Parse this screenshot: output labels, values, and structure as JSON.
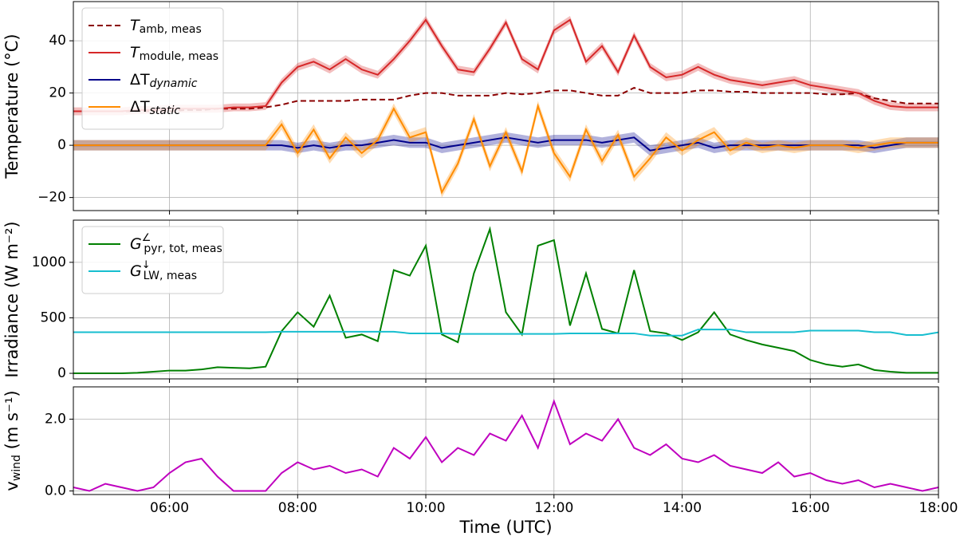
{
  "chart_data": [
    {
      "type": "line",
      "ylabel": "Temperature (°C)",
      "x": [
        "04:30",
        "04:45",
        "05:00",
        "05:15",
        "05:30",
        "05:45",
        "06:00",
        "06:15",
        "06:30",
        "06:45",
        "07:00",
        "07:15",
        "07:30",
        "07:45",
        "08:00",
        "08:15",
        "08:30",
        "08:45",
        "09:00",
        "09:15",
        "09:30",
        "09:45",
        "10:00",
        "10:15",
        "10:30",
        "10:45",
        "11:00",
        "11:15",
        "11:30",
        "11:45",
        "12:00",
        "12:15",
        "12:30",
        "12:45",
        "13:00",
        "13:15",
        "13:30",
        "13:45",
        "14:00",
        "14:15",
        "14:30",
        "14:45",
        "15:00",
        "15:15",
        "15:30",
        "15:45",
        "16:00",
        "16:15",
        "16:30",
        "16:45",
        "17:00",
        "17:15",
        "17:30",
        "17:45",
        "18:00"
      ],
      "xlim": [
        "04:30",
        "18:00"
      ],
      "xticks": [
        "06:00",
        "08:00",
        "10:00",
        "12:00",
        "14:00",
        "16:00",
        "18:00"
      ],
      "ylim": [
        -25,
        55
      ],
      "yticks": [
        {
          "value": -20,
          "label": "−20"
        },
        0,
        20,
        40
      ],
      "grid": true,
      "legend": "upper left",
      "series": [
        {
          "name": "T",
          "name_sub": "amb, meas",
          "color": "#8b0000",
          "dashed": true,
          "values": [
            13,
            13,
            13,
            13,
            13,
            13,
            13,
            13.5,
            13.5,
            14,
            14,
            14,
            14.5,
            15.5,
            17,
            17,
            17,
            17,
            17.5,
            17.5,
            17.5,
            19,
            20,
            20,
            19,
            19,
            19,
            20,
            19.5,
            20,
            21,
            21,
            20,
            19,
            19,
            22,
            20,
            20,
            20,
            21,
            21,
            20.5,
            20.5,
            20,
            20,
            20,
            20,
            19.5,
            19.5,
            20,
            18,
            17,
            16,
            16,
            16
          ]
        },
        {
          "name": "T",
          "name_sub": "module, meas",
          "color": "#d62728",
          "uncertainty": 1.5,
          "values": [
            13,
            13,
            13,
            13,
            13.5,
            13.5,
            14,
            14,
            14,
            14,
            14.5,
            14.5,
            15,
            24,
            30,
            32,
            29,
            33,
            29,
            27,
            33,
            40,
            48,
            38,
            29,
            28,
            37,
            47,
            33,
            29,
            44,
            48,
            32,
            38,
            28,
            42,
            30,
            26,
            27,
            30,
            27,
            25,
            24,
            23,
            24,
            25,
            23,
            22,
            21,
            20,
            17,
            15,
            14.5,
            14.5,
            14.5
          ]
        },
        {
          "name": "ΔT",
          "name_sub": "dynamic",
          "sub_italic": true,
          "color": "#00008b",
          "uncertainty": 2,
          "values": [
            0,
            0,
            0,
            0,
            0,
            0,
            0,
            0,
            0,
            0,
            0,
            0,
            0,
            0,
            -1,
            0,
            -1,
            0,
            0,
            1,
            2,
            1,
            1,
            -1,
            0,
            1,
            2,
            3,
            2,
            1,
            2,
            2,
            2,
            1,
            2,
            3,
            -2,
            -1,
            0,
            1,
            -1,
            0,
            0,
            0,
            0,
            0,
            0,
            0,
            0,
            0,
            -1,
            0,
            1,
            1,
            1
          ]
        },
        {
          "name": "ΔT",
          "name_sub": "static",
          "sub_italic": true,
          "color": "#ff8c00",
          "uncertainty": 2,
          "values": [
            0,
            0,
            0,
            0,
            0,
            0,
            0,
            0,
            0,
            0,
            0,
            0,
            0,
            8,
            -3,
            6,
            -5,
            3,
            -3,
            2,
            14,
            3,
            5,
            -18,
            -7,
            10,
            -8,
            5,
            -10,
            15,
            -3,
            -12,
            6,
            -6,
            4,
            -12,
            -5,
            3,
            -2,
            2,
            5,
            -2,
            1,
            -1,
            0,
            -1,
            0,
            0,
            0,
            -1,
            0,
            1,
            1,
            1,
            1
          ]
        }
      ]
    },
    {
      "type": "line",
      "ylabel": "Irradiance (W m⁻²)",
      "x": [
        "04:30",
        "04:45",
        "05:00",
        "05:15",
        "05:30",
        "05:45",
        "06:00",
        "06:15",
        "06:30",
        "06:45",
        "07:00",
        "07:15",
        "07:30",
        "07:45",
        "08:00",
        "08:15",
        "08:30",
        "08:45",
        "09:00",
        "09:15",
        "09:30",
        "09:45",
        "10:00",
        "10:15",
        "10:30",
        "10:45",
        "11:00",
        "11:15",
        "11:30",
        "11:45",
        "12:00",
        "12:15",
        "12:30",
        "12:45",
        "13:00",
        "13:15",
        "13:30",
        "13:45",
        "14:00",
        "14:15",
        "14:30",
        "14:45",
        "15:00",
        "15:15",
        "15:30",
        "15:45",
        "16:00",
        "16:15",
        "16:30",
        "16:45",
        "17:00",
        "17:15",
        "17:30",
        "17:45",
        "18:00"
      ],
      "xlim": [
        "04:30",
        "18:00"
      ],
      "xticks": [
        "06:00",
        "08:00",
        "10:00",
        "12:00",
        "14:00",
        "16:00",
        "18:00"
      ],
      "ylim": [
        -50,
        1380
      ],
      "yticks": [
        0,
        500,
        1000
      ],
      "grid": true,
      "legend": "upper left",
      "series": [
        {
          "name": "G",
          "name_sup": "∠",
          "name_sub": "pyr, tot, meas",
          "color": "#008000",
          "values": [
            0,
            0,
            0,
            0,
            5,
            15,
            25,
            25,
            35,
            55,
            50,
            45,
            60,
            380,
            550,
            420,
            700,
            320,
            350,
            290,
            930,
            880,
            1150,
            350,
            280,
            900,
            1300,
            550,
            350,
            1150,
            1200,
            430,
            900,
            400,
            360,
            930,
            380,
            360,
            300,
            370,
            550,
            350,
            300,
            260,
            230,
            200,
            120,
            80,
            60,
            80,
            30,
            15,
            5,
            5,
            5
          ]
        },
        {
          "name": "G",
          "name_sup": "↓",
          "name_sub": "LW, meas",
          "color": "#17becf",
          "values": [
            370,
            370,
            370,
            370,
            370,
            370,
            370,
            370,
            370,
            370,
            370,
            370,
            370,
            375,
            375,
            375,
            375,
            375,
            375,
            375,
            375,
            360,
            360,
            360,
            355,
            355,
            355,
            355,
            355,
            355,
            355,
            360,
            360,
            360,
            360,
            360,
            340,
            340,
            340,
            395,
            395,
            395,
            370,
            370,
            370,
            370,
            385,
            385,
            385,
            385,
            370,
            370,
            345,
            345,
            370
          ]
        }
      ]
    },
    {
      "type": "line",
      "ylabel": "v",
      "ylabel_sub": "wind",
      "ylabel_rest": " (m s⁻¹)",
      "xlabel": "Time (UTC)",
      "x": [
        "04:30",
        "04:45",
        "05:00",
        "05:15",
        "05:30",
        "05:45",
        "06:00",
        "06:15",
        "06:30",
        "06:45",
        "07:00",
        "07:15",
        "07:30",
        "07:45",
        "08:00",
        "08:15",
        "08:30",
        "08:45",
        "09:00",
        "09:15",
        "09:30",
        "09:45",
        "10:00",
        "10:15",
        "10:30",
        "10:45",
        "11:00",
        "11:15",
        "11:30",
        "11:45",
        "12:00",
        "12:15",
        "12:30",
        "12:45",
        "13:00",
        "13:15",
        "13:30",
        "13:45",
        "14:00",
        "14:15",
        "14:30",
        "14:45",
        "15:00",
        "15:15",
        "15:30",
        "15:45",
        "16:00",
        "16:15",
        "16:30",
        "16:45",
        "17:00",
        "17:15",
        "17:30",
        "17:45",
        "18:00"
      ],
      "xlim": [
        "04:30",
        "18:00"
      ],
      "xticks": [
        "06:00",
        "08:00",
        "10:00",
        "12:00",
        "14:00",
        "16:00",
        "18:00"
      ],
      "ylim": [
        -0.1,
        2.9
      ],
      "yticks": [
        {
          "value": 0,
          "label": "0.0"
        },
        {
          "value": 2,
          "label": "2.0"
        }
      ],
      "grid": true,
      "series": [
        {
          "color": "#bf00bf",
          "values": [
            0.1,
            0,
            0.2,
            0.1,
            0,
            0.1,
            0.5,
            0.8,
            0.9,
            0.4,
            0,
            0,
            0,
            0.5,
            0.8,
            0.6,
            0.7,
            0.5,
            0.6,
            0.4,
            1.2,
            0.9,
            1.5,
            0.8,
            1.2,
            1.0,
            1.6,
            1.4,
            2.1,
            1.2,
            2.5,
            1.3,
            1.6,
            1.4,
            2.0,
            1.2,
            1.0,
            1.3,
            0.9,
            0.8,
            1.0,
            0.7,
            0.6,
            0.5,
            0.8,
            0.4,
            0.5,
            0.3,
            0.2,
            0.3,
            0.1,
            0.2,
            0.1,
            0.0,
            0.1
          ]
        }
      ]
    }
  ]
}
